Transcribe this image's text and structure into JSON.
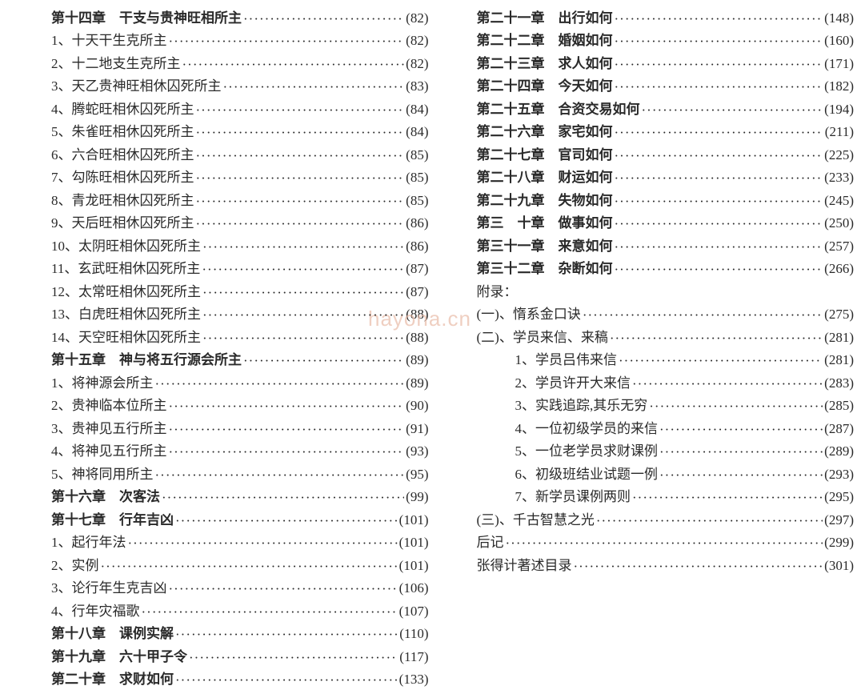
{
  "watermark": "hayona.cn",
  "left_column": [
    {
      "type": "chapter",
      "label": "第十四章　干支与贵神旺相所主",
      "page": "(82)"
    },
    {
      "type": "item",
      "label": "1、十天干生克所主",
      "page": "(82)"
    },
    {
      "type": "item",
      "label": "2、十二地支生克所主",
      "page": "(82)"
    },
    {
      "type": "item",
      "label": "3、天乙贵神旺相休囚死所主",
      "page": "(83)"
    },
    {
      "type": "item",
      "label": "4、腾蛇旺相休囚死所主",
      "page": "(84)"
    },
    {
      "type": "item",
      "label": "5、朱雀旺相休囚死所主",
      "page": "(84)"
    },
    {
      "type": "item",
      "label": "6、六合旺相休囚死所主",
      "page": "(85)"
    },
    {
      "type": "item",
      "label": "7、勾陈旺相休囚死所主",
      "page": "(85)"
    },
    {
      "type": "item",
      "label": "8、青龙旺相休囚死所主",
      "page": "(85)"
    },
    {
      "type": "item",
      "label": "9、天后旺相休囚死所主",
      "page": "(86)"
    },
    {
      "type": "item",
      "label": "10、太阴旺相休囚死所主",
      "page": "(86)"
    },
    {
      "type": "item",
      "label": "11、玄武旺相休囚死所主",
      "page": "(87)"
    },
    {
      "type": "item",
      "label": "12、太常旺相休囚死所主",
      "page": "(87)"
    },
    {
      "type": "item",
      "label": "13、白虎旺相休囚死所主",
      "page": "(88)"
    },
    {
      "type": "item",
      "label": "14、天空旺相休囚死所主",
      "page": "(88)"
    },
    {
      "type": "chapter",
      "label": "第十五章　神与将五行源会所主",
      "page": "(89)"
    },
    {
      "type": "item",
      "label": "1、将神源会所主",
      "page": "(89)"
    },
    {
      "type": "item",
      "label": "2、贵神临本位所主",
      "page": "(90)"
    },
    {
      "type": "item",
      "label": "3、贵神见五行所主",
      "page": "(91)"
    },
    {
      "type": "item",
      "label": "4、将神见五行所主",
      "page": "(93)"
    },
    {
      "type": "item",
      "label": "5、神将同用所主",
      "page": "(95)"
    },
    {
      "type": "chapter",
      "label": "第十六章　次客法",
      "page": "(99)"
    },
    {
      "type": "chapter",
      "label": "第十七章　行年吉凶",
      "page": "(101)"
    },
    {
      "type": "item",
      "label": "1、起行年法",
      "page": "(101)"
    },
    {
      "type": "item",
      "label": "2、实例",
      "page": "(101)"
    },
    {
      "type": "item",
      "label": "3、论行年生克吉凶",
      "page": "(106)"
    },
    {
      "type": "item",
      "label": "4、行年灾福歌",
      "page": "(107)"
    },
    {
      "type": "chapter",
      "label": "第十八章　课例实解",
      "page": "(110)"
    },
    {
      "type": "chapter",
      "label": "第十九章　六十甲子令",
      "page": "(117)"
    },
    {
      "type": "chapter",
      "label": "第二十章　求财如何",
      "page": "(133)"
    }
  ],
  "right_column": [
    {
      "type": "chapter",
      "label": "第二十一章　出行如何",
      "page": "(148)"
    },
    {
      "type": "chapter",
      "label": "第二十二章　婚姻如何",
      "page": "(160)"
    },
    {
      "type": "chapter",
      "label": "第二十三章　求人如何",
      "page": "(171)"
    },
    {
      "type": "chapter",
      "label": "第二十四章　今天如何",
      "page": "(182)"
    },
    {
      "type": "chapter",
      "label": "第二十五章　合资交易如何",
      "page": "(194)"
    },
    {
      "type": "chapter",
      "label": "第二十六章　家宅如何",
      "page": "(211)"
    },
    {
      "type": "chapter",
      "label": "第二十七章　官司如何",
      "page": "(225)"
    },
    {
      "type": "chapter",
      "label": "第二十八章　财运如何",
      "page": "(233)"
    },
    {
      "type": "chapter",
      "label": "第二十九章　失物如何",
      "page": "(245)"
    },
    {
      "type": "chapter",
      "label": "第三　十章　做事如何",
      "page": "(250)"
    },
    {
      "type": "chapter",
      "label": "第三十一章　来意如何",
      "page": "(257)"
    },
    {
      "type": "chapter",
      "label": "第三十二章　杂断如何",
      "page": "(266)"
    },
    {
      "type": "plain",
      "label": "附录：",
      "page": ""
    },
    {
      "type": "item",
      "label": "(一)、惰系金口诀",
      "page": "(275)"
    },
    {
      "type": "item",
      "label": "(二)、学员来信、来稿",
      "page": "(281)"
    },
    {
      "type": "sub",
      "label": "1、学员吕伟来信",
      "page": "(281)"
    },
    {
      "type": "sub",
      "label": "2、学员许开大来信",
      "page": "(283)"
    },
    {
      "type": "sub",
      "label": "3、实践追踪,其乐无穷",
      "page": "(285)"
    },
    {
      "type": "sub",
      "label": "4、一位初级学员的来信",
      "page": "(287)"
    },
    {
      "type": "sub",
      "label": "5、一位老学员求财课例",
      "page": "(289)"
    },
    {
      "type": "sub",
      "label": "6、初级班结业试题一例",
      "page": "(293)"
    },
    {
      "type": "sub",
      "label": "7、新学员课例两则",
      "page": "(295)"
    },
    {
      "type": "item",
      "label": "(三)、千古智慧之光",
      "page": "(297)"
    },
    {
      "type": "item",
      "label": "后记",
      "page": "(299)"
    },
    {
      "type": "item",
      "label": "张得计著述目录",
      "page": "(301)"
    }
  ],
  "style": {
    "font_family": "SimSun",
    "font_size_pt": 13,
    "text_color": "#2a2a2a",
    "background_color": "#ffffff",
    "watermark_color": "#e9bba8"
  }
}
